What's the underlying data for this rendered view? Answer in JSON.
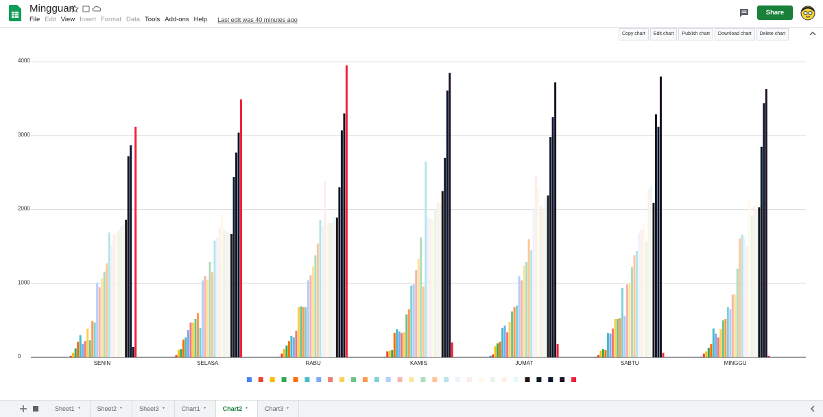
{
  "header": {
    "title": "Mingguan",
    "menu": [
      {
        "label": "File",
        "enabled": true
      },
      {
        "label": "Edit",
        "enabled": false
      },
      {
        "label": "View",
        "enabled": true
      },
      {
        "label": "Insert",
        "enabled": false
      },
      {
        "label": "Format",
        "enabled": false
      },
      {
        "label": "Data",
        "enabled": false
      },
      {
        "label": "Tools",
        "enabled": true
      },
      {
        "label": "Add-ons",
        "enabled": true
      },
      {
        "label": "Help",
        "enabled": true
      }
    ],
    "last_edit": "Last edit was 40 minutes ago",
    "share": "Share"
  },
  "toolbar": [
    "Copy chart",
    "Edit chart",
    "Publish chart",
    "Download chart",
    "Delete chart"
  ],
  "chart_data": {
    "type": "bar",
    "categories": [
      "SENIN",
      "SELASA",
      "RABU",
      "KAMIS",
      "JUMAT",
      "SABTU",
      "MINGGU"
    ],
    "ylim": [
      0,
      4000
    ],
    "yticks": [
      0,
      1000,
      2000,
      3000,
      4000
    ],
    "grid": true,
    "legend": "bottom",
    "series": [
      {
        "color": "#4285f4",
        "values": [
          5,
          10,
          10,
          10,
          20,
          10,
          10
        ]
      },
      {
        "color": "#ea4335",
        "values": [
          20,
          30,
          50,
          80,
          40,
          30,
          50
        ]
      },
      {
        "color": "#fbbc04",
        "values": [
          60,
          100,
          110,
          90,
          150,
          90,
          80
        ]
      },
      {
        "color": "#34a853",
        "values": [
          120,
          110,
          160,
          100,
          190,
          110,
          130
        ]
      },
      {
        "color": "#ff6d01",
        "values": [
          210,
          240,
          220,
          330,
          210,
          100,
          180
        ]
      },
      {
        "color": "#46bdc6",
        "values": [
          300,
          270,
          290,
          380,
          400,
          330,
          390
        ]
      },
      {
        "color": "#7baaf7",
        "values": [
          180,
          370,
          270,
          350,
          430,
          320,
          320
        ]
      },
      {
        "color": "#f07b72",
        "values": [
          220,
          470,
          360,
          330,
          340,
          390,
          270
        ]
      },
      {
        "color": "#fcd04f",
        "values": [
          390,
          470,
          680,
          340,
          480,
          520,
          380
        ]
      },
      {
        "color": "#71c287",
        "values": [
          230,
          520,
          690,
          580,
          620,
          520,
          500
        ]
      },
      {
        "color": "#ff994d",
        "values": [
          490,
          600,
          680,
          650,
          680,
          530,
          520
        ]
      },
      {
        "color": "#7ed1d7",
        "values": [
          470,
          400,
          680,
          970,
          700,
          940,
          680
        ]
      },
      {
        "color": "#b3cefb",
        "values": [
          1010,
          1040,
          1040,
          990,
          1100,
          560,
          650
        ]
      },
      {
        "color": "#f7b4ae",
        "values": [
          950,
          1100,
          1110,
          1180,
          1040,
          990,
          850
        ]
      },
      {
        "color": "#fde49b",
        "values": [
          1070,
          1050,
          1230,
          1330,
          1240,
          1000,
          850
        ]
      },
      {
        "color": "#aedcba",
        "values": [
          1160,
          1290,
          1380,
          1620,
          1290,
          1220,
          1200
        ]
      },
      {
        "color": "#ffc599",
        "values": [
          1270,
          1150,
          1540,
          960,
          1600,
          1380,
          1610
        ]
      },
      {
        "color": "#b5e5e8",
        "values": [
          1690,
          1580,
          1860,
          2650,
          1450,
          1440,
          1660
        ]
      },
      {
        "color": "#ecf3fe",
        "values": [
          1520,
          1620,
          1780,
          1900,
          2030,
          1680,
          1630
        ]
      },
      {
        "color": "#fdeceb",
        "values": [
          1660,
          1750,
          2380,
          1880,
          2460,
          1730,
          1500
        ]
      },
      {
        "color": "#fff8e6",
        "values": [
          1690,
          1920,
          1810,
          1870,
          2300,
          1820,
          2120
        ]
      },
      {
        "color": "#e6f4ea",
        "values": [
          1720,
          1730,
          1820,
          2000,
          2050,
          1560,
          1920
        ]
      },
      {
        "color": "#ffefe6",
        "values": [
          1780,
          1700,
          1820,
          2100,
          2000,
          2270,
          2050
        ]
      },
      {
        "color": "#e7f8f9",
        "values": [
          1810,
          1680,
          1900,
          2080,
          2150,
          2330,
          2000
        ]
      },
      {
        "color": "#231515",
        "values": [
          1860,
          1670,
          1890,
          2250,
          2190,
          2090,
          2030
        ]
      },
      {
        "color": "#0e1a24",
        "values": [
          2720,
          2440,
          2300,
          2700,
          2980,
          3290,
          2850
        ]
      },
      {
        "color": "#0c1633",
        "values": [
          2870,
          2770,
          3070,
          3610,
          3250,
          3120,
          3440
        ]
      },
      {
        "color": "#1f1323",
        "values": [
          140,
          3040,
          3300,
          3850,
          3720,
          3800,
          3630
        ]
      },
      {
        "color": "#f2203a",
        "values": [
          3120,
          3490,
          3950,
          200,
          180,
          60,
          20
        ]
      }
    ]
  },
  "tabs": [
    {
      "label": "Sheet1",
      "active": false
    },
    {
      "label": "Sheet2",
      "active": false
    },
    {
      "label": "Sheet3",
      "active": false
    },
    {
      "label": "Chart1",
      "active": false
    },
    {
      "label": "Chart2",
      "active": true
    },
    {
      "label": "Chart3",
      "active": false
    }
  ]
}
